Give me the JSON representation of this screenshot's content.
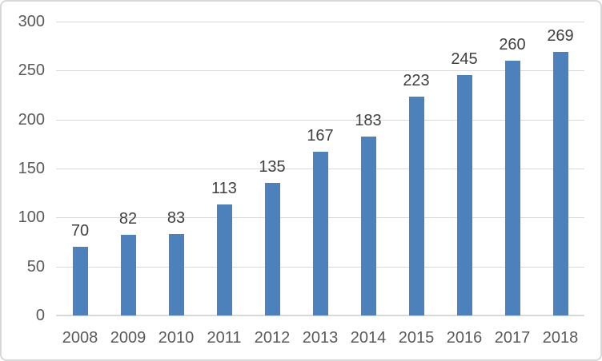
{
  "chart_data": {
    "type": "bar",
    "title": "",
    "xlabel": "",
    "ylabel": "",
    "categories": [
      "2008",
      "2009",
      "2010",
      "2011",
      "2012",
      "2013",
      "2014",
      "2015",
      "2016",
      "2017",
      "2018"
    ],
    "values": [
      70,
      82,
      83,
      113,
      135,
      167,
      183,
      223,
      245,
      260,
      269
    ],
    "data_labels": [
      70,
      82,
      83,
      113,
      135,
      167,
      183,
      223,
      245,
      260,
      269
    ],
    "ylim": [
      0,
      300
    ],
    "yticks": [
      0,
      50,
      100,
      150,
      200,
      250,
      300
    ],
    "grid": true,
    "legend": false,
    "colors": {
      "bar": "#4d81bc",
      "gridline": "#d9d9d9",
      "axis_label": "#595959",
      "data_label": "#404040",
      "background": "#ffffff",
      "border": "#d9d9d9"
    }
  }
}
